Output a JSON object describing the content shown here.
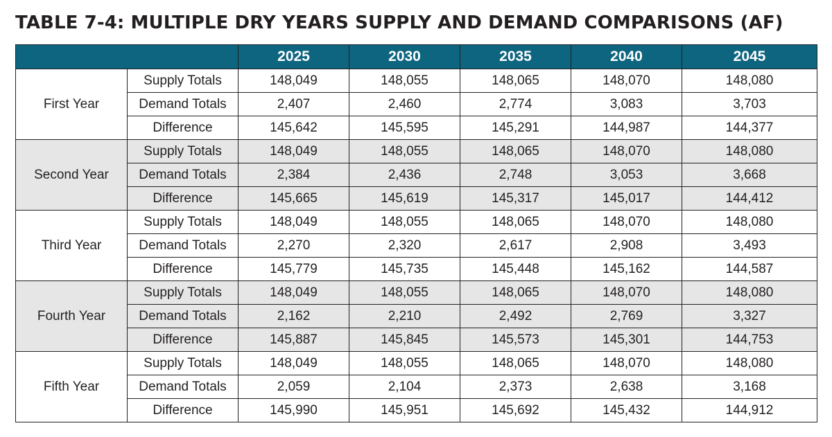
{
  "title": "TABLE 7-4: MULTIPLE DRY YEARS SUPPLY AND DEMAND COMPARISONS (AF)",
  "colors": {
    "header_bg": "#0e6580",
    "header_text": "#ffffff",
    "shaded_row_bg": "#e6e6e7",
    "border": "#231f20"
  },
  "table": {
    "years": [
      "2025",
      "2030",
      "2035",
      "2040",
      "2045"
    ],
    "groups": [
      {
        "label": "First Year",
        "rows": [
          {
            "metric": "Supply Totals",
            "values": [
              "148,049",
              "148,055",
              "148,065",
              "148,070",
              "148,080"
            ]
          },
          {
            "metric": "Demand Totals",
            "values": [
              "2,407",
              "2,460",
              "2,774",
              "3,083",
              "3,703"
            ]
          },
          {
            "metric": "Difference",
            "values": [
              "145,642",
              "145,595",
              "145,291",
              "144,987",
              "144,377"
            ]
          }
        ]
      },
      {
        "label": "Second Year",
        "rows": [
          {
            "metric": "Supply Totals",
            "values": [
              "148,049",
              "148,055",
              "148,065",
              "148,070",
              "148,080"
            ]
          },
          {
            "metric": "Demand Totals",
            "values": [
              "2,384",
              "2,436",
              "2,748",
              "3,053",
              "3,668"
            ]
          },
          {
            "metric": "Difference",
            "values": [
              "145,665",
              "145,619",
              "145,317",
              "145,017",
              "144,412"
            ]
          }
        ]
      },
      {
        "label": "Third Year",
        "rows": [
          {
            "metric": "Supply Totals",
            "values": [
              "148,049",
              "148,055",
              "148,065",
              "148,070",
              "148,080"
            ]
          },
          {
            "metric": "Demand Totals",
            "values": [
              "2,270",
              "2,320",
              "2,617",
              "2,908",
              "3,493"
            ]
          },
          {
            "metric": "Difference",
            "values": [
              "145,779",
              "145,735",
              "145,448",
              "145,162",
              "144,587"
            ]
          }
        ]
      },
      {
        "label": "Fourth Year",
        "rows": [
          {
            "metric": "Supply Totals",
            "values": [
              "148,049",
              "148,055",
              "148,065",
              "148,070",
              "148,080"
            ]
          },
          {
            "metric": "Demand Totals",
            "values": [
              "2,162",
              "2,210",
              "2,492",
              "2,769",
              "3,327"
            ]
          },
          {
            "metric": "Difference",
            "values": [
              "145,887",
              "145,845",
              "145,573",
              "145,301",
              "144,753"
            ]
          }
        ]
      },
      {
        "label": "Fifth Year",
        "rows": [
          {
            "metric": "Supply Totals",
            "values": [
              "148,049",
              "148,055",
              "148,065",
              "148,070",
              "148,080"
            ]
          },
          {
            "metric": "Demand Totals",
            "values": [
              "2,059",
              "2,104",
              "2,373",
              "2,638",
              "3,168"
            ]
          },
          {
            "metric": "Difference",
            "values": [
              "145,990",
              "145,951",
              "145,692",
              "145,432",
              "144,912"
            ]
          }
        ]
      }
    ]
  }
}
